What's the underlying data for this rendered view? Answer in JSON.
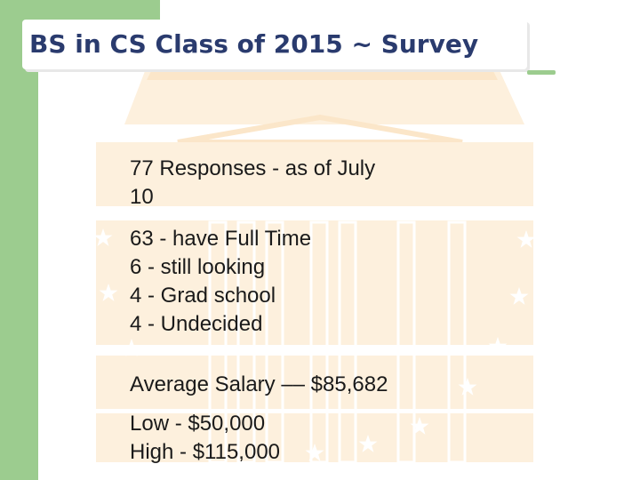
{
  "slide": {
    "title": "BS in CS Class of 2015 ~ Survey",
    "responses_line1": "77 Responses   - as of July",
    "responses_line2": "10",
    "outcomes": [
      "63  - have Full Time",
      "6 -  still looking",
      "4 - Grad school",
      "4 - Undecided"
    ],
    "average_salary": "Average Salary –– $85,682",
    "low_salary": "Low - $50,000",
    "high_salary": "High - $115,000"
  },
  "colors": {
    "accent_green": "#9ccc8f",
    "title_navy": "#2a3b6e",
    "building_cream": "#fdf0dd"
  },
  "icons": [
    "building-graphic",
    "star-icon"
  ]
}
